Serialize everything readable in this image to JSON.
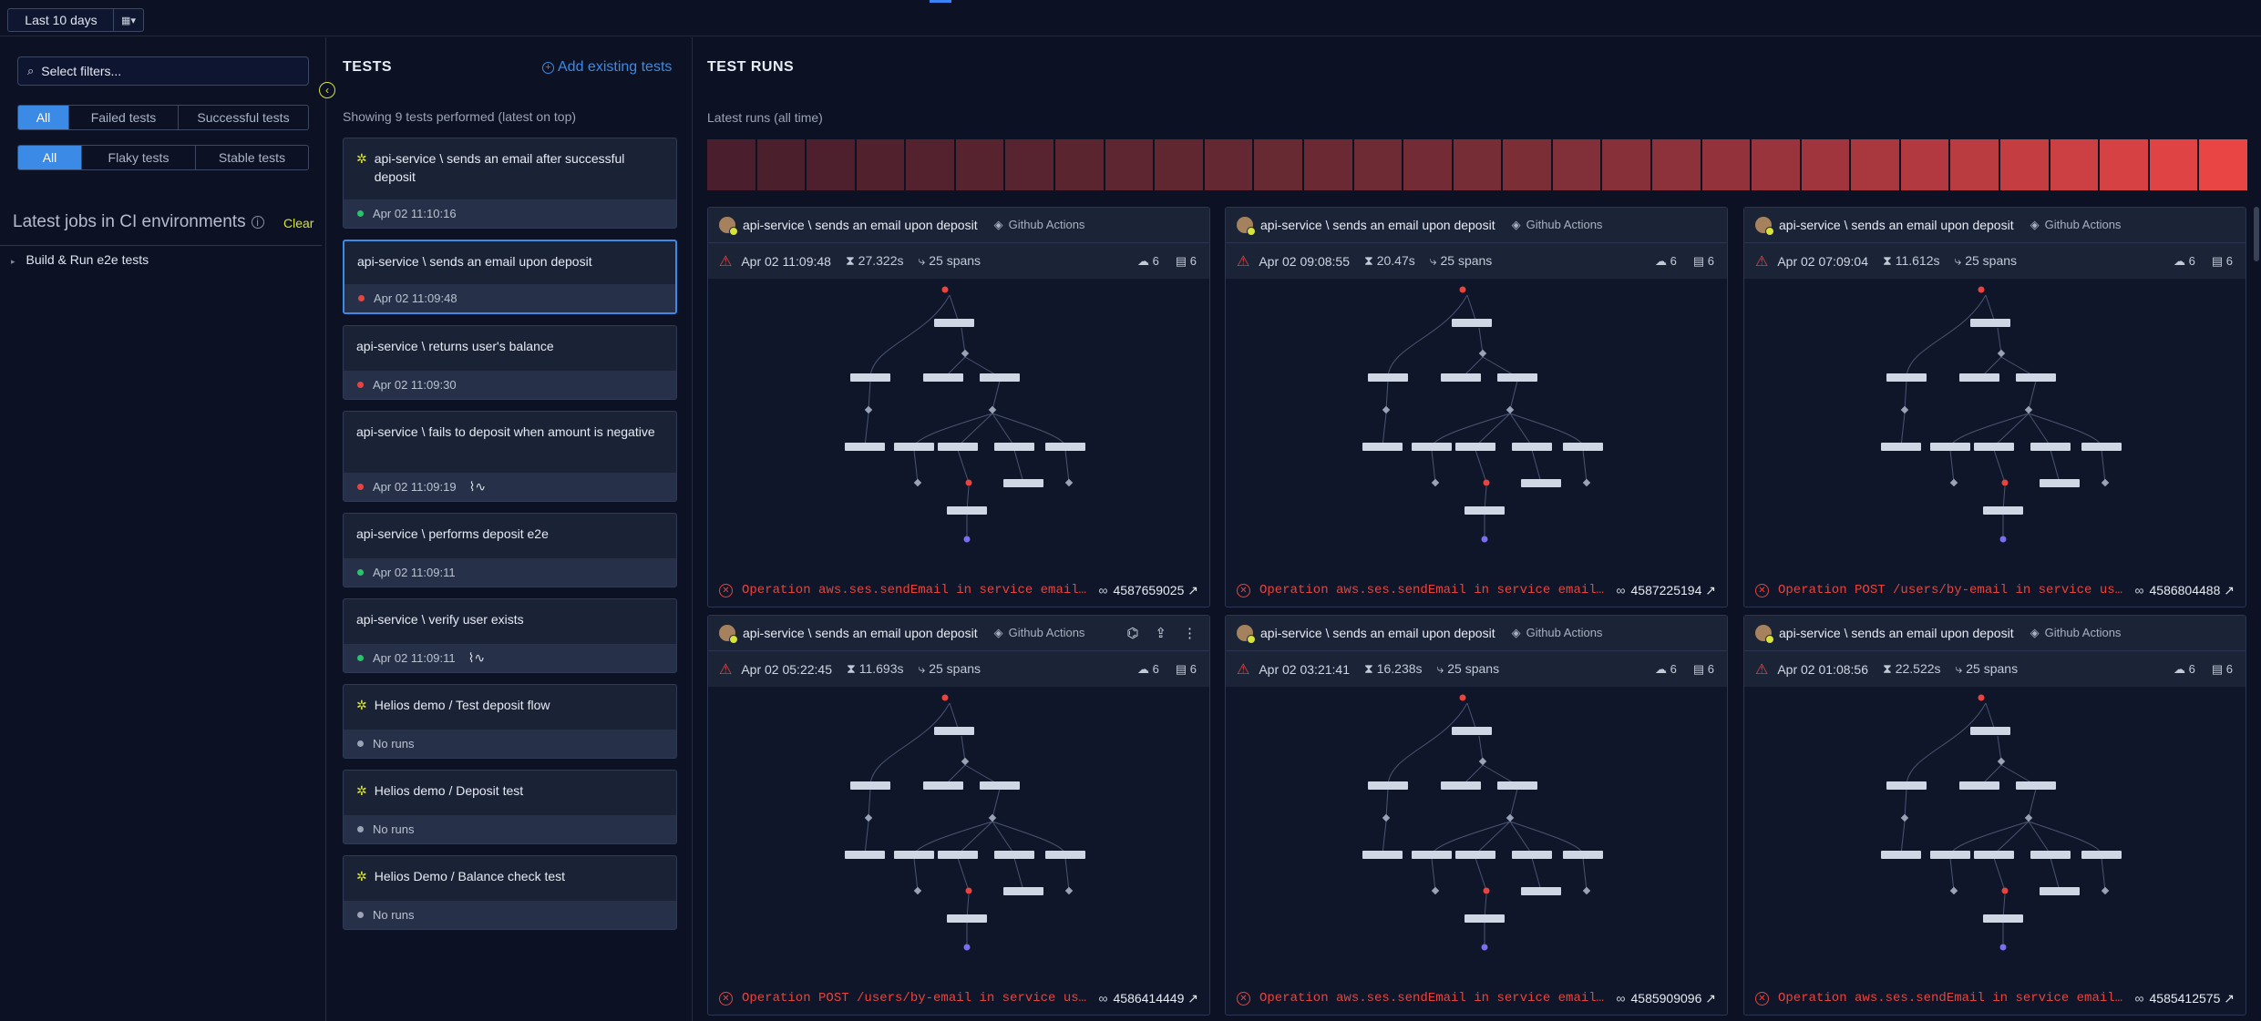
{
  "topbar": {
    "range_label": "Last 10 days",
    "calendar_caret": "▾"
  },
  "filters": {
    "search_placeholder": "Select filters...",
    "status_tabs": [
      "All",
      "Failed tests",
      "Successful tests"
    ],
    "stability_tabs": [
      "All",
      "Flaky tests",
      "Stable tests"
    ]
  },
  "ci": {
    "title": "Latest jobs in CI environments",
    "clear_label": "Clear",
    "job_label": "Build & Run e2e tests"
  },
  "tests": {
    "title": "TESTS",
    "add_label": "Add existing tests",
    "showing": "Showing 9 tests performed (latest on top)",
    "items": [
      {
        "name": "api-service \\ sends an email after successful deposit",
        "time": "Apr 02 11:10:16",
        "status": "pass",
        "sparkle": true,
        "flaky": false
      },
      {
        "name": "api-service \\ sends an email upon deposit",
        "time": "Apr 02 11:09:48",
        "status": "fail",
        "sparkle": false,
        "flaky": false
      },
      {
        "name": "api-service \\ returns user's balance",
        "time": "Apr 02 11:09:30",
        "status": "fail",
        "sparkle": false,
        "flaky": false
      },
      {
        "name": "api-service \\ fails to deposit when amount is negative",
        "time": "Apr 02 11:09:19",
        "status": "fail",
        "sparkle": false,
        "flaky": true
      },
      {
        "name": "api-service \\ performs deposit e2e",
        "time": "Apr 02 11:09:11",
        "status": "pass",
        "sparkle": false,
        "flaky": false
      },
      {
        "name": "api-service \\ verify user exists",
        "time": "Apr 02 11:09:11",
        "status": "pass",
        "sparkle": false,
        "flaky": true
      },
      {
        "name": "Helios demo / Test deposit flow",
        "time": "No runs",
        "status": "none",
        "sparkle": true,
        "flaky": false
      },
      {
        "name": "Helios demo / Deposit test",
        "time": "No runs",
        "status": "none",
        "sparkle": true,
        "flaky": false
      },
      {
        "name": "Helios Demo / Balance check test",
        "time": "No runs",
        "status": "none",
        "sparkle": true,
        "flaky": false
      }
    ]
  },
  "runs": {
    "title": "TEST RUNS",
    "latest_label": "Latest runs (all time)",
    "history_colors": [
      "#4a1e2c",
      "#4c1f2d",
      "#4e202d",
      "#51212e",
      "#53222e",
      "#56232f",
      "#58242f",
      "#5b2530",
      "#5e2630",
      "#612731",
      "#642832",
      "#672932",
      "#6b2a33",
      "#6f2b34",
      "#732c35",
      "#772d36",
      "#7c2e37",
      "#812f38",
      "#873039",
      "#8d313a",
      "#93323b",
      "#9a343c",
      "#a1353d",
      "#a9373e",
      "#b1393f",
      "#ba3b40",
      "#c33d41",
      "#cc3f42",
      "#d64143",
      "#e04344",
      "#ea4545"
    ],
    "items": [
      {
        "name": "api-service \\ sends an email upon deposit",
        "ci": "Github Actions",
        "time": "Apr 02 11:09:48",
        "duration": "27.322s",
        "spans": "25 spans",
        "services": "6",
        "dbs": "6",
        "error": "Operation aws.ses.sendEmail in service email…",
        "id": "4587659025",
        "actions": false
      },
      {
        "name": "api-service \\ sends an email upon deposit",
        "ci": "Github Actions",
        "time": "Apr 02 09:08:55",
        "duration": "20.47s",
        "spans": "25 spans",
        "services": "6",
        "dbs": "6",
        "error": "Operation aws.ses.sendEmail in service email…",
        "id": "4587225194",
        "actions": false
      },
      {
        "name": "api-service \\ sends an email upon deposit",
        "ci": "Github Actions",
        "time": "Apr 02 07:09:04",
        "duration": "11.612s",
        "spans": "25 spans",
        "services": "6",
        "dbs": "6",
        "error": "Operation POST /users/by-email in service us…",
        "id": "4586804488",
        "actions": false
      },
      {
        "name": "api-service \\ sends an email upon deposit",
        "ci": "Github Actions",
        "time": "Apr 02 05:22:45",
        "duration": "11.693s",
        "spans": "25 spans",
        "services": "6",
        "dbs": "6",
        "error": "Operation POST /users/by-email in service us…",
        "id": "4586414449",
        "actions": true
      },
      {
        "name": "api-service \\ sends an email upon deposit",
        "ci": "Github Actions",
        "time": "Apr 02 03:21:41",
        "duration": "16.238s",
        "spans": "25 spans",
        "services": "6",
        "dbs": "6",
        "error": "Operation aws.ses.sendEmail in service email…",
        "id": "4585909096",
        "actions": false
      },
      {
        "name": "api-service \\ sends an email upon deposit",
        "ci": "Github Actions",
        "time": "Apr 02 01:08:56",
        "duration": "22.522s",
        "spans": "25 spans",
        "services": "6",
        "dbs": "6",
        "error": "Operation aws.ses.sendEmail in service email…",
        "id": "4585412575",
        "actions": false
      }
    ]
  }
}
